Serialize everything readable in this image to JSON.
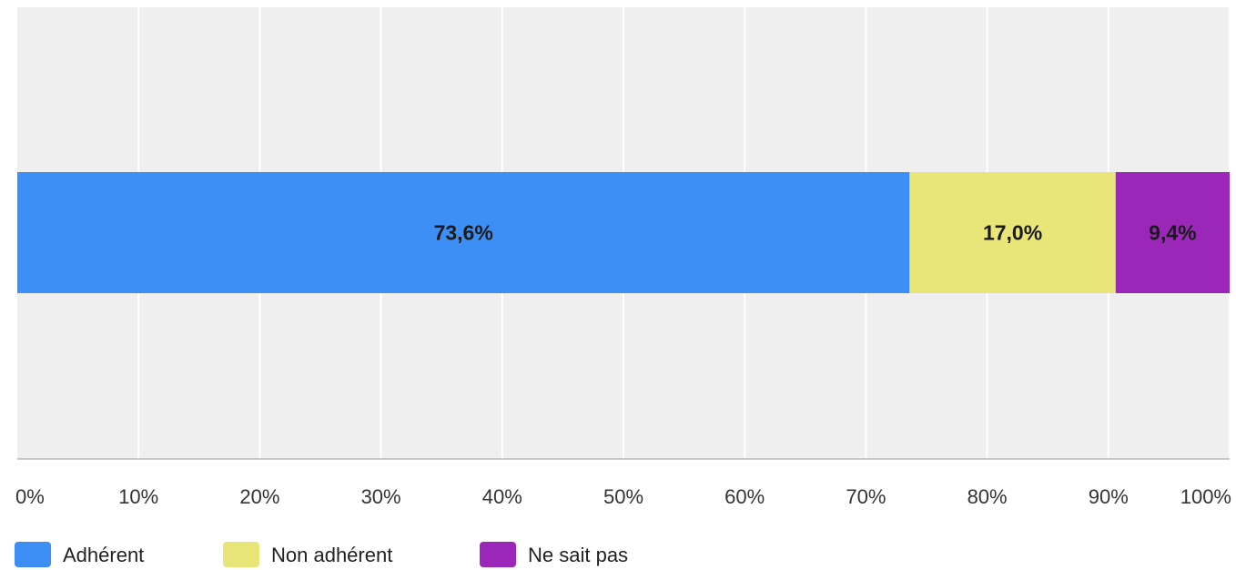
{
  "chart_data": {
    "type": "bar",
    "orientation": "horizontal",
    "stacked": true,
    "categories": [
      ""
    ],
    "series": [
      {
        "name": "Adhérent",
        "values": [
          73.6
        ],
        "label": "73,6%",
        "color": "#3d8ff5"
      },
      {
        "name": "Non adhérent",
        "values": [
          17.0
        ],
        "label": "17,0%",
        "color": "#e8e678"
      },
      {
        "name": "Ne sait pas",
        "values": [
          9.4
        ],
        "label": "9,4%",
        "color": "#9b27b8"
      }
    ],
    "xlim": [
      0,
      100
    ],
    "x_ticks": [
      0,
      10,
      20,
      30,
      40,
      50,
      60,
      70,
      80,
      90,
      100
    ],
    "x_tick_labels": [
      "0%",
      "10%",
      "20%",
      "30%",
      "40%",
      "50%",
      "60%",
      "70%",
      "80%",
      "90%",
      "100%"
    ],
    "grid": true,
    "legend_position": "bottom-left",
    "title": "",
    "xlabel": "",
    "ylabel": "",
    "colors": {
      "plot_background": "#efefef",
      "gridline": "#ffffff",
      "axis_line": "#c8c8c8"
    }
  }
}
